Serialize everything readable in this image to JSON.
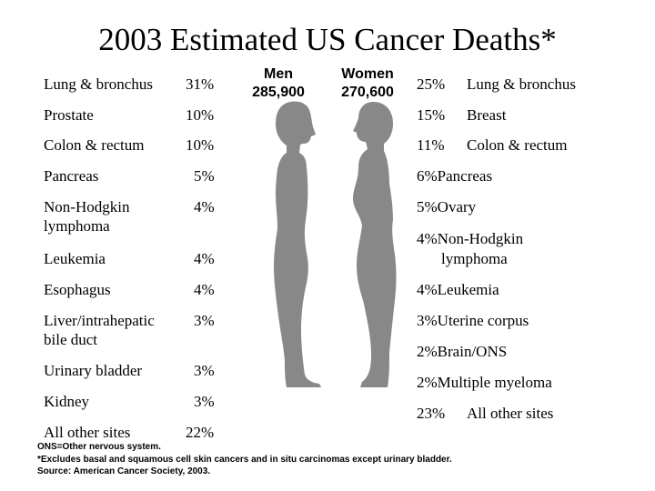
{
  "title": "2003 Estimated US Cancer Deaths*",
  "men": {
    "header_label": "Men",
    "header_count": "285,900",
    "rows": [
      {
        "site": "Lung & bronchus",
        "pct": "31%"
      },
      {
        "site": "Prostate",
        "pct": "10%"
      },
      {
        "site": "Colon & rectum",
        "pct": "10%"
      },
      {
        "site": "Pancreas",
        "pct": "5%"
      },
      {
        "site": "Non-Hodgkin lymphoma",
        "pct": "4%"
      },
      {
        "site": "Leukemia",
        "pct": "4%"
      },
      {
        "site": "Esophagus",
        "pct": "4%"
      },
      {
        "site": "Liver/intrahepatic bile duct",
        "pct": "3%"
      },
      {
        "site": "Urinary bladder",
        "pct": "3%"
      },
      {
        "site": "Kidney",
        "pct": "3%"
      },
      {
        "site": "All other sites",
        "pct": "22%"
      }
    ]
  },
  "women": {
    "header_label": "Women",
    "header_count": "270,600",
    "rows": [
      {
        "pct": "25%",
        "site": "Lung & bronchus"
      },
      {
        "pct": "15%",
        "site": "Breast"
      },
      {
        "pct": "11%",
        "site": "Colon & rectum"
      },
      {
        "pct": "6%",
        "site": "Pancreas"
      },
      {
        "pct": "5%",
        "site": "Ovary"
      },
      {
        "pct": "4%",
        "site": "Non-Hodgkin"
      },
      {
        "pct": "",
        "site": "lymphoma"
      },
      {
        "pct": "4%",
        "site": "Leukemia"
      },
      {
        "pct": "3%",
        "site": "Uterine corpus"
      },
      {
        "pct": "2%",
        "site": "Brain/ONS"
      },
      {
        "pct": "2%",
        "site": "Multiple myeloma"
      },
      {
        "pct": "23%",
        "site": "All other sites"
      }
    ]
  },
  "footnotes": {
    "ons": "ONS=Other nervous system.",
    "excludes": "*Excludes basal and squamous cell skin cancers and in situ carcinomas except urinary bladder.",
    "source": "Source: American Cancer Society, 2003."
  },
  "colors": {
    "silhouette": "#888888",
    "text": "#000000",
    "background": "#ffffff"
  }
}
